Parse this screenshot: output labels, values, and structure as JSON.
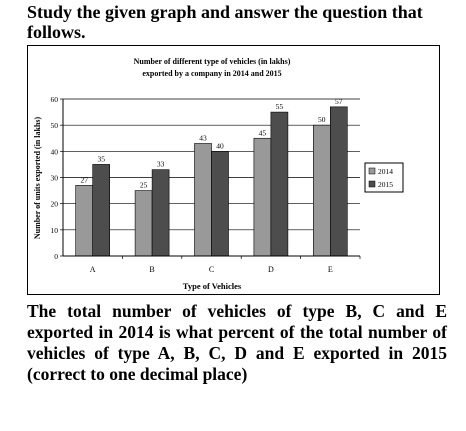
{
  "heading": "Study the given graph and answer the question that follows.",
  "question": "The total number of vehicles of type B, C and E exported in 2014 is what percent of the total number of vehicles of type A, B, C, D and E exported in 2015 (correct to one decimal place)",
  "chart_data": {
    "type": "bar",
    "title": "Number of different type of vehicles (in lakhs) exported by a company in 2014 and 2015",
    "title_lines": [
      "Number of different type of vehicles (in lakhs)",
      "exported by a company in 2014 and 2015"
    ],
    "xlabel": "Type of Vehicles",
    "ylabel": "Number of units exported (in lakhs)",
    "categories": [
      "A",
      "B",
      "C",
      "D",
      "E"
    ],
    "ylim": [
      0,
      60
    ],
    "yticks": [
      0,
      10,
      20,
      30,
      40,
      50,
      60
    ],
    "grid": true,
    "legend_position": "right",
    "series": [
      {
        "name": "2014",
        "values": [
          27,
          25,
          43,
          45,
          50
        ],
        "color": "#999999"
      },
      {
        "name": "2015",
        "values": [
          35,
          33,
          40,
          55,
          57
        ],
        "color": "#4d4d4d"
      }
    ]
  }
}
